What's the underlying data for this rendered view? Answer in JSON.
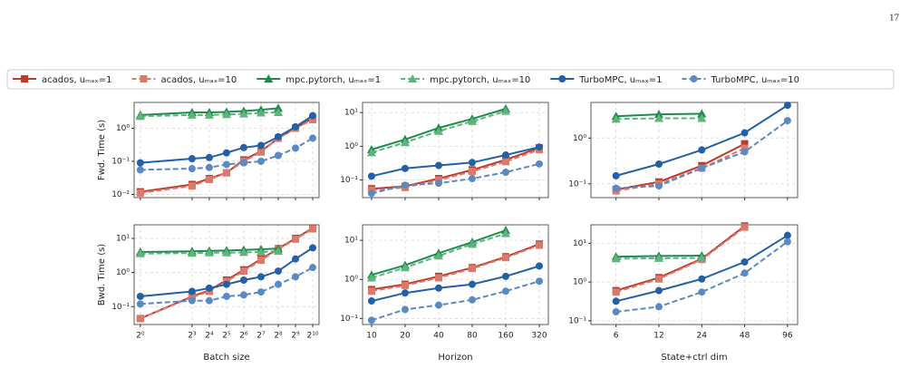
{
  "page_number": "17",
  "chart_data": {
    "type": "line",
    "log_x": true,
    "log_y": true,
    "grid": true,
    "series": [
      {
        "name": "acados, uₘₐₓ=1",
        "color": "#c0392b",
        "marker": "square",
        "dashed": false
      },
      {
        "name": "acados, uₘₐₓ=10",
        "color": "#d97a6c",
        "marker": "square",
        "dashed": true
      },
      {
        "name": "mpc.pytorch, uₘₐₓ=1",
        "color": "#1e8c4e",
        "marker": "triangle",
        "dashed": false
      },
      {
        "name": "mpc.pytorch, uₘₐₓ=10",
        "color": "#5fb37c",
        "marker": "triangle",
        "dashed": true
      },
      {
        "name": "TurboMPC, uₘₐₓ=1",
        "color": "#2360a5",
        "marker": "circle",
        "dashed": false
      },
      {
        "name": "TurboMPC, uₘₐₓ=10",
        "color": "#5b89c2",
        "marker": "circle",
        "dashed": true
      }
    ],
    "columns": [
      {
        "xlabel": "Batch size",
        "x": [
          1,
          8,
          16,
          32,
          64,
          128,
          256,
          512,
          1024
        ],
        "xlim": [
          0.78,
          1320
        ],
        "xticks": [
          {
            "value": 1,
            "label": "2⁰"
          },
          {
            "value": 8,
            "label": "2³"
          },
          {
            "value": 16,
            "label": "2⁴"
          },
          {
            "value": 32,
            "label": "2⁵"
          },
          {
            "value": 64,
            "label": "2⁶"
          },
          {
            "value": 128,
            "label": "2⁷"
          },
          {
            "value": 256,
            "label": "2⁸"
          },
          {
            "value": 512,
            "label": "2⁹"
          },
          {
            "value": 1024,
            "label": "2¹⁰"
          }
        ],
        "rows": [
          {
            "ylabel": "Fwd. Time (s)",
            "ylim": [
              0.008,
              6
            ],
            "yticks": [
              {
                "value": 0.01,
                "label": "10⁻²"
              },
              {
                "value": 0.1,
                "label": "10⁻¹"
              },
              {
                "value": 1,
                "label": "10⁰"
              }
            ],
            "values": [
              [
                0.012,
                0.02,
                0.03,
                0.045,
                0.11,
                0.2,
                0.5,
                1.0,
                2.0
              ],
              [
                0.011,
                0.018,
                0.028,
                0.045,
                0.1,
                0.19,
                0.5,
                1.0,
                1.8
              ],
              [
                2.5,
                3.0,
                3.0,
                3.1,
                3.3,
                3.6,
                4.0,
                null,
                null
              ],
              [
                2.3,
                2.5,
                2.5,
                2.6,
                2.7,
                2.9,
                3.0,
                null,
                null
              ],
              [
                0.09,
                0.12,
                0.13,
                0.18,
                0.26,
                0.3,
                0.55,
                1.1,
                2.4
              ],
              [
                0.055,
                0.06,
                0.065,
                0.08,
                0.09,
                0.1,
                0.15,
                0.25,
                0.5
              ]
            ]
          },
          {
            "ylabel": "Bwd. Time (s)",
            "ylim": [
              0.03,
              25
            ],
            "yticks": [
              {
                "value": 0.1,
                "label": "10⁻¹"
              },
              {
                "value": 1,
                "label": "10⁰"
              },
              {
                "value": 10,
                "label": "10¹"
              }
            ],
            "values": [
              [
                0.045,
                0.2,
                0.3,
                0.6,
                1.2,
                2.5,
                5,
                10,
                20
              ],
              [
                0.045,
                0.19,
                0.28,
                0.55,
                1.1,
                2.3,
                4.8,
                9.5,
                19
              ],
              [
                4,
                4.2,
                4.3,
                4.4,
                4.6,
                4.8,
                5.0,
                null,
                null
              ],
              [
                3.6,
                3.7,
                3.8,
                3.8,
                3.9,
                4,
                4.2,
                null,
                null
              ],
              [
                0.2,
                0.28,
                0.35,
                0.45,
                0.6,
                0.75,
                1.1,
                2.5,
                5.3
              ],
              [
                0.12,
                0.15,
                0.15,
                0.2,
                0.22,
                0.27,
                0.45,
                0.75,
                1.4
              ]
            ]
          }
        ]
      },
      {
        "xlabel": "Horizon",
        "x": [
          10,
          20,
          40,
          80,
          160,
          320
        ],
        "xlim": [
          8.3,
          386
        ],
        "xticks": [
          10,
          20,
          40,
          80,
          160,
          320
        ],
        "rows": [
          {
            "ylim": [
              0.03,
              20
            ],
            "yticks": [
              {
                "value": 0.1,
                "label": "10⁻¹"
              },
              {
                "value": 1,
                "label": "10⁰"
              },
              {
                "value": 10,
                "label": "10¹"
              }
            ],
            "values": [
              [
                0.055,
                0.065,
                0.11,
                0.2,
                0.4,
                0.9
              ],
              [
                0.05,
                0.06,
                0.1,
                0.18,
                0.35,
                0.8
              ],
              [
                0.8,
                1.6,
                3.5,
                6.5,
                13,
                null
              ],
              [
                0.65,
                1.3,
                2.8,
                5.5,
                11,
                null
              ],
              [
                0.13,
                0.22,
                0.27,
                0.33,
                0.55,
                0.95
              ],
              [
                0.04,
                0.07,
                0.08,
                0.11,
                0.17,
                0.3
              ]
            ]
          },
          {
            "ylim": [
              0.07,
              25
            ],
            "yticks": [
              {
                "value": 0.1,
                "label": "10⁻¹"
              },
              {
                "value": 1,
                "label": "10⁰"
              },
              {
                "value": 10,
                "label": "10¹"
              }
            ],
            "values": [
              [
                0.55,
                0.75,
                1.2,
                2,
                3.8,
                8
              ],
              [
                0.5,
                0.7,
                1.1,
                1.9,
                3.6,
                7.5
              ],
              [
                1.3,
                2.3,
                4.7,
                9,
                18,
                null
              ],
              [
                1.1,
                2.0,
                4,
                8,
                15,
                null
              ],
              [
                0.28,
                0.45,
                0.6,
                0.75,
                1.2,
                2.2
              ],
              [
                0.09,
                0.17,
                0.22,
                0.3,
                0.5,
                0.9
              ]
            ]
          }
        ]
      },
      {
        "xlabel": "State+ctrl dim",
        "x": [
          6,
          12,
          24,
          48,
          96
        ],
        "xlim": [
          4,
          113
        ],
        "xticks": [
          6,
          12,
          24,
          48,
          96
        ],
        "rows": [
          {
            "ylim": [
              0.05,
              6
            ],
            "yticks": [
              {
                "value": 0.1,
                "label": "10⁻¹"
              },
              {
                "value": 1,
                "label": "10⁰"
              }
            ],
            "values": [
              [
                0.075,
                0.11,
                0.25,
                0.75,
                null
              ],
              [
                0.07,
                0.1,
                0.22,
                0.6,
                null
              ],
              [
                3.0,
                3.3,
                3.4,
                null,
                null
              ],
              [
                2.6,
                2.7,
                2.7,
                null,
                null
              ],
              [
                0.15,
                0.27,
                0.55,
                1.3,
                5.2
              ],
              [
                0.08,
                0.09,
                0.22,
                0.5,
                2.4
              ]
            ]
          },
          {
            "ylim": [
              0.08,
              30
            ],
            "yticks": [
              {
                "value": 0.1,
                "label": "10⁻¹"
              },
              {
                "value": 1,
                "label": "10⁰"
              },
              {
                "value": 10,
                "label": "10¹"
              }
            ],
            "values": [
              [
                0.6,
                1.3,
                4,
                28,
                null
              ],
              [
                0.55,
                1.2,
                3.8,
                26,
                null
              ],
              [
                4.5,
                4.7,
                4.8,
                null,
                null
              ],
              [
                4.0,
                4.1,
                4.2,
                null,
                null
              ],
              [
                0.32,
                0.6,
                1.2,
                3.3,
                16
              ],
              [
                0.17,
                0.23,
                0.55,
                1.7,
                11
              ]
            ]
          }
        ]
      }
    ]
  }
}
